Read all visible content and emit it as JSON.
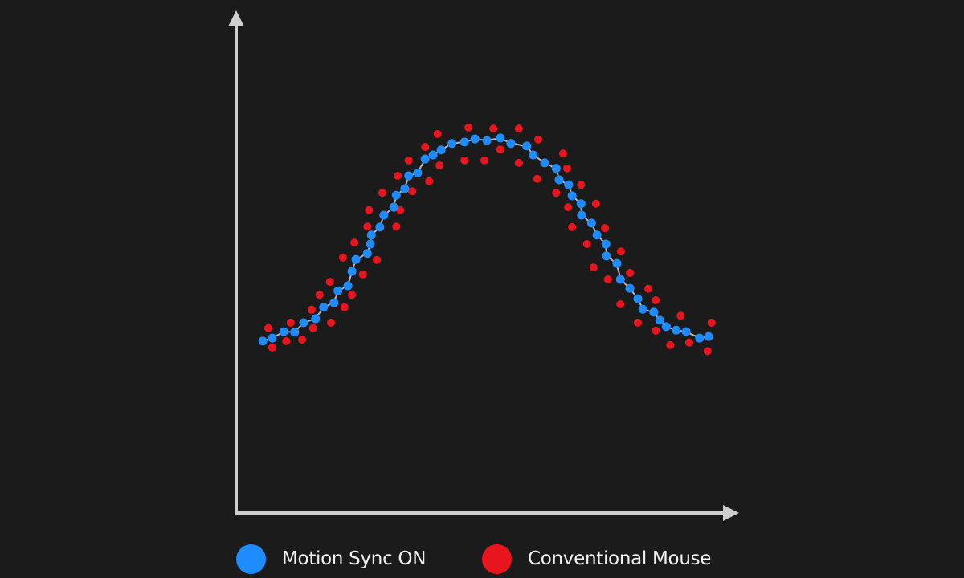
{
  "chart_data": {
    "type": "scatter",
    "title": "",
    "xlabel": "",
    "ylabel": "",
    "xlim": [
      0,
      100
    ],
    "ylim": [
      0,
      100
    ],
    "grid": false,
    "legend_placement": "bottom",
    "series": [
      {
        "name": "Motion Sync ON",
        "color": "#1e8cff",
        "fit_line": true,
        "fit_color": "#b4b4b4",
        "points": [
          [
            5.5,
            34.7
          ],
          [
            7.4,
            35.3
          ],
          [
            9.7,
            36.6
          ],
          [
            11.9,
            36.5
          ],
          [
            13.7,
            38.4
          ],
          [
            16.1,
            39.2
          ],
          [
            17.7,
            41.5
          ],
          [
            19.8,
            42.4
          ],
          [
            20.6,
            44.8
          ],
          [
            22.6,
            45.8
          ],
          [
            23.4,
            48.7
          ],
          [
            24.2,
            51.1
          ],
          [
            26.5,
            52.3
          ],
          [
            27.1,
            54.2
          ],
          [
            27.3,
            56.0
          ],
          [
            29.0,
            57.6
          ],
          [
            29.8,
            60.0
          ],
          [
            31.8,
            61.6
          ],
          [
            32.3,
            64.0
          ],
          [
            34.0,
            65.3
          ],
          [
            34.8,
            67.9
          ],
          [
            36.6,
            68.5
          ],
          [
            38.1,
            71.3
          ],
          [
            39.7,
            72.1
          ],
          [
            41.3,
            73.1
          ],
          [
            43.5,
            74.4
          ],
          [
            46.0,
            74.7
          ],
          [
            48.1,
            75.3
          ],
          [
            50.5,
            75.0
          ],
          [
            53.2,
            75.5
          ],
          [
            55.3,
            74.4
          ],
          [
            58.5,
            73.9
          ],
          [
            59.8,
            72.1
          ],
          [
            62.1,
            70.5
          ],
          [
            64.4,
            69.4
          ],
          [
            65.0,
            67.1
          ],
          [
            66.9,
            66.1
          ],
          [
            67.6,
            63.9
          ],
          [
            69.4,
            62.3
          ],
          [
            69.5,
            60.0
          ],
          [
            71.5,
            58.4
          ],
          [
            72.6,
            56.0
          ],
          [
            74.4,
            54.2
          ],
          [
            74.5,
            51.8
          ],
          [
            76.6,
            50.3
          ],
          [
            77.3,
            47.1
          ],
          [
            79.2,
            45.3
          ],
          [
            80.8,
            43.2
          ],
          [
            81.8,
            41.1
          ],
          [
            84.0,
            40.5
          ],
          [
            85.2,
            38.9
          ],
          [
            86.5,
            37.6
          ],
          [
            88.5,
            36.9
          ],
          [
            90.5,
            36.6
          ],
          [
            93.2,
            35.3
          ],
          [
            95.0,
            35.6
          ]
        ]
      },
      {
        "name": "Conventional Mouse",
        "color": "#e8141e",
        "fit_line": false,
        "points": [
          [
            6.6,
            37.3
          ],
          [
            7.4,
            33.4
          ],
          [
            10.2,
            34.7
          ],
          [
            11.1,
            38.4
          ],
          [
            13.4,
            35.0
          ],
          [
            15.3,
            41.0
          ],
          [
            15.6,
            37.3
          ],
          [
            16.9,
            44.0
          ],
          [
            19.2,
            38.4
          ],
          [
            19.0,
            46.6
          ],
          [
            21.9,
            41.5
          ],
          [
            21.6,
            51.5
          ],
          [
            23.4,
            44.0
          ],
          [
            23.9,
            54.5
          ],
          [
            25.6,
            48.1
          ],
          [
            26.5,
            57.7
          ],
          [
            26.8,
            61.0
          ],
          [
            28.4,
            51.0
          ],
          [
            29.5,
            64.5
          ],
          [
            32.3,
            57.7
          ],
          [
            33.1,
            61.0
          ],
          [
            32.6,
            67.9
          ],
          [
            35.5,
            64.8
          ],
          [
            34.8,
            71.0
          ],
          [
            38.9,
            66.8
          ],
          [
            38.1,
            73.7
          ],
          [
            41.0,
            70.0
          ],
          [
            40.6,
            76.3
          ],
          [
            46.0,
            71.0
          ],
          [
            46.8,
            77.6
          ],
          [
            50.0,
            71.0
          ],
          [
            51.8,
            77.4
          ],
          [
            53.2,
            73.2
          ],
          [
            56.9,
            77.4
          ],
          [
            56.9,
            70.5
          ],
          [
            60.8,
            75.2
          ],
          [
            60.6,
            67.3
          ],
          [
            65.8,
            72.4
          ],
          [
            66.6,
            69.4
          ],
          [
            64.4,
            64.5
          ],
          [
            69.4,
            66.1
          ],
          [
            66.8,
            61.6
          ],
          [
            72.4,
            62.3
          ],
          [
            67.6,
            57.6
          ],
          [
            74.2,
            57.4
          ],
          [
            70.6,
            54.2
          ],
          [
            77.4,
            52.7
          ],
          [
            71.9,
            49.5
          ],
          [
            74.8,
            47.1
          ],
          [
            79.2,
            48.4
          ],
          [
            77.3,
            42.1
          ],
          [
            82.9,
            45.2
          ],
          [
            84.4,
            42.9
          ],
          [
            80.8,
            38.4
          ],
          [
            84.4,
            36.8
          ],
          [
            89.4,
            39.8
          ],
          [
            87.3,
            33.9
          ],
          [
            91.1,
            34.4
          ],
          [
            95.6,
            38.4
          ],
          [
            94.8,
            32.7
          ]
        ]
      }
    ]
  },
  "legend": [
    {
      "label": "Motion Sync ON",
      "color": "#1e8cff"
    },
    {
      "label": "Conventional Mouse",
      "color": "#e8141e"
    }
  ],
  "colors": {
    "background": "#1b1b1b",
    "axis": "#cfcfcf"
  }
}
